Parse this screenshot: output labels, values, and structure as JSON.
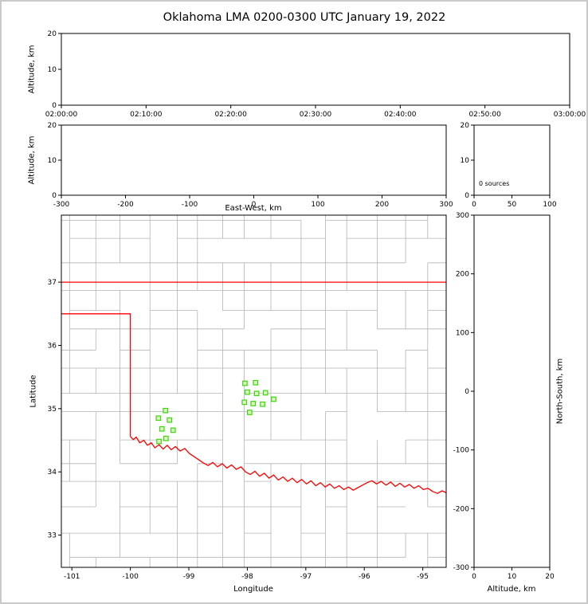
{
  "title": "Oklahoma LMA 0200-0300 UTC January 19, 2022",
  "panels": {
    "time_height": {
      "ylabel": "Altitude, km",
      "x_range": [
        0,
        6
      ],
      "y_range": [
        0,
        20
      ],
      "xticks": [
        0,
        1,
        2,
        3,
        4,
        5,
        6
      ],
      "xtick_labels": [
        "02:00:00",
        "02:10:00",
        "02:20:00",
        "02:30:00",
        "02:40:00",
        "02:50:00",
        "03:00:00"
      ],
      "yticks": [
        0,
        10,
        20
      ]
    },
    "ew_height": {
      "xlabel": "East-West, km",
      "ylabel": "Altitude, km",
      "x_range": [
        -300,
        300
      ],
      "y_range": [
        0,
        20
      ],
      "xticks": [
        -300,
        -200,
        -100,
        0,
        100,
        200,
        300
      ],
      "yticks": [
        0,
        10,
        20
      ]
    },
    "histogram": {
      "annotation": "0 sources",
      "x_range": [
        0,
        100
      ],
      "y_range": [
        0,
        20
      ],
      "xticks": [
        0,
        50,
        100
      ],
      "yticks": [
        0,
        10,
        20
      ]
    },
    "map": {
      "xlabel": "Longitude",
      "ylabel": "Latitude",
      "x_range": [
        -101.18,
        -94.6
      ],
      "y_range": [
        32.49,
        38.06
      ],
      "xticks": [
        -101,
        -100,
        -99,
        -98,
        -97,
        -96,
        -95
      ],
      "yticks": [
        33,
        34,
        35,
        36,
        37
      ]
    },
    "ns_height": {
      "xlabel": "Altitude, km",
      "ylabel": "North-South, km",
      "x_range": [
        0,
        20
      ],
      "y_range": [
        -300,
        300
      ],
      "xticks": [
        0,
        10,
        20
      ],
      "yticks": [
        -300,
        -200,
        -100,
        0,
        100,
        200,
        300
      ]
    }
  },
  "chart_data": {
    "type": "scatter",
    "title": "Oklahoma LMA 0200-0300 UTC January 19, 2022",
    "description": "XLMA-style lightning mapping array display; all source panels are empty (0 sources detected). Map panel shows LMA station locations (green squares), county boundaries (gray) and the Oklahoma state border / Red River (red).",
    "source_count": 0,
    "sources": [],
    "map_extent": {
      "lon": [
        -101.18,
        -94.6
      ],
      "lat": [
        32.49,
        38.06
      ]
    },
    "stations": [
      [
        -99.4,
        34.97
      ],
      [
        -99.52,
        34.85
      ],
      [
        -99.33,
        34.82
      ],
      [
        -99.46,
        34.68
      ],
      [
        -99.27,
        34.66
      ],
      [
        -99.39,
        34.53
      ],
      [
        -99.51,
        34.48
      ],
      [
        -98.04,
        35.4
      ],
      [
        -97.86,
        35.41
      ],
      [
        -98.0,
        35.26
      ],
      [
        -97.84,
        35.24
      ],
      [
        -97.69,
        35.25
      ],
      [
        -98.05,
        35.1
      ],
      [
        -97.9,
        35.08
      ],
      [
        -97.74,
        35.07
      ],
      [
        -97.55,
        35.15
      ],
      [
        -97.96,
        34.94
      ]
    ],
    "state_border": [
      [
        [
          -101.19,
          37.0
        ],
        [
          -94.6,
          37.0
        ]
      ],
      [
        [
          -101.19,
          36.5
        ],
        [
          -100.0,
          36.5
        ],
        [
          -100.0,
          34.56
        ]
      ],
      [
        [
          -100.0,
          34.56
        ],
        [
          -99.95,
          34.51
        ],
        [
          -99.9,
          34.55
        ],
        [
          -99.84,
          34.46
        ],
        [
          -99.77,
          34.5
        ],
        [
          -99.71,
          34.42
        ],
        [
          -99.64,
          34.46
        ],
        [
          -99.58,
          34.38
        ],
        [
          -99.51,
          34.43
        ],
        [
          -99.44,
          34.36
        ],
        [
          -99.37,
          34.42
        ],
        [
          -99.3,
          34.35
        ],
        [
          -99.23,
          34.4
        ],
        [
          -99.15,
          34.33
        ],
        [
          -99.07,
          34.37
        ],
        [
          -98.99,
          34.29
        ],
        [
          -98.91,
          34.24
        ],
        [
          -98.83,
          34.19
        ],
        [
          -98.75,
          34.14
        ],
        [
          -98.67,
          34.1
        ],
        [
          -98.59,
          34.15
        ],
        [
          -98.51,
          34.08
        ],
        [
          -98.43,
          34.13
        ],
        [
          -98.35,
          34.06
        ],
        [
          -98.27,
          34.11
        ],
        [
          -98.19,
          34.04
        ],
        [
          -98.11,
          34.08
        ],
        [
          -98.03,
          34.0
        ],
        [
          -97.95,
          33.96
        ],
        [
          -97.87,
          34.01
        ],
        [
          -97.79,
          33.93
        ],
        [
          -97.71,
          33.98
        ],
        [
          -97.63,
          33.9
        ],
        [
          -97.55,
          33.95
        ],
        [
          -97.47,
          33.87
        ],
        [
          -97.39,
          33.92
        ],
        [
          -97.31,
          33.85
        ],
        [
          -97.23,
          33.9
        ],
        [
          -97.15,
          33.83
        ],
        [
          -97.07,
          33.88
        ],
        [
          -96.99,
          33.81
        ],
        [
          -96.91,
          33.86
        ],
        [
          -96.83,
          33.78
        ],
        [
          -96.75,
          33.83
        ],
        [
          -96.67,
          33.76
        ],
        [
          -96.59,
          33.81
        ],
        [
          -96.51,
          33.74
        ],
        [
          -96.43,
          33.78
        ],
        [
          -96.35,
          33.72
        ],
        [
          -96.27,
          33.76
        ],
        [
          -96.19,
          33.71
        ],
        [
          -96.11,
          33.75
        ],
        [
          -96.03,
          33.79
        ],
        [
          -95.95,
          33.83
        ],
        [
          -95.87,
          33.86
        ],
        [
          -95.79,
          33.81
        ],
        [
          -95.71,
          33.85
        ],
        [
          -95.63,
          33.79
        ],
        [
          -95.55,
          33.84
        ],
        [
          -95.47,
          33.77
        ],
        [
          -95.39,
          33.82
        ],
        [
          -95.31,
          33.76
        ],
        [
          -95.23,
          33.8
        ],
        [
          -95.15,
          33.74
        ],
        [
          -95.07,
          33.78
        ],
        [
          -94.99,
          33.72
        ],
        [
          -94.91,
          33.74
        ],
        [
          -94.83,
          33.69
        ],
        [
          -94.75,
          33.66
        ],
        [
          -94.67,
          33.7
        ],
        [
          -94.6,
          33.67
        ]
      ]
    ],
    "colors": {
      "state_border": "#ff0000",
      "county_lines": "#b4b4b4",
      "station_edge": "#3cd60a",
      "station_fill": "#d9f9c0",
      "axes": "#000000",
      "background": "#ffffff"
    }
  }
}
